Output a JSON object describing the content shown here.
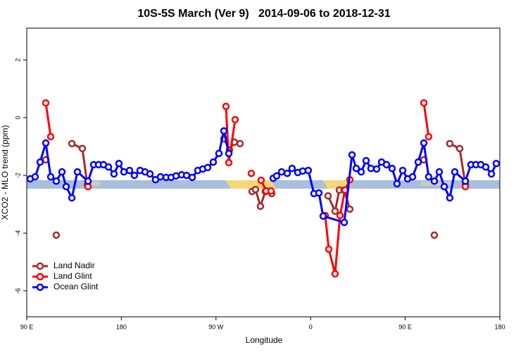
{
  "chart_data": {
    "type": "line",
    "title": "10S-5S March (Ver 9)   2014-09-06 to 2018-12-31",
    "x_label": "Longitude",
    "y_label": "XCO2 - MLO trend (ppm)",
    "xlim": [
      90,
      540
    ],
    "ylim": [
      -6.9,
      3.1
    ],
    "xticks": [
      {
        "value": 90,
        "label": "90 E"
      },
      180,
      {
        "value": 270,
        "label": "90 W"
      },
      {
        "value": 360,
        "label": "0"
      },
      {
        "value": 450,
        "label": "90 E"
      },
      {
        "value": 540,
        "label": "180"
      }
    ],
    "yticks": [
      -6,
      -4,
      -2,
      0,
      2
    ],
    "legend": "bottom-left",
    "series": [
      {
        "name": "Land Nadir",
        "color": "#a52a2a",
        "x": [
          108.1,
          null,
          118.1,
          null,
          132.9,
          142.9,
          147.6,
          null,
          277.5,
          282.8,
          287.5,
          292.9,
          null,
          304.3,
          307.6,
          312.3,
          316.9,
          323.0,
          null,
          376.6,
          383.3,
          387.3,
          392.0,
          397.3,
          null,
          467.7,
          null,
          477.7,
          null,
          492.4,
          501.8,
          507.2
        ],
        "values": [
          -1.46,
          null,
          -4.07,
          null,
          -0.9,
          -1.07,
          -2.32,
          null,
          -0.73,
          -1.12,
          -0.85,
          -0.9,
          null,
          -2.56,
          -2.49,
          -3.07,
          -2.56,
          -2.63,
          null,
          -2.71,
          -3.24,
          -2.51,
          -2.51,
          -3.17,
          null,
          -1.46,
          null,
          -4.07,
          null,
          -0.9,
          -1.07,
          -2.32
        ]
      },
      {
        "name": "Land Glint",
        "color": "#ff0000",
        "x": [
          108.1,
          112.8,
          null,
          148.3,
          null,
          279.5,
          282.2,
          288.2,
          null,
          303.6,
          null,
          312.9,
          317.7,
          322.4,
          null,
          373.9,
          377.3,
          383.3,
          388.0,
          392.7,
          397.3,
          null,
          467.7,
          472.3,
          null,
          507.2
        ],
        "values": [
          0.51,
          -0.66,
          null,
          -2.39,
          null,
          0.39,
          -1.56,
          -0.07,
          null,
          -1.93,
          null,
          -2.17,
          -2.54,
          -2.54,
          null,
          -3.39,
          -4.56,
          -5.41,
          -3.39,
          -2.51,
          -2.15,
          null,
          0.51,
          -0.66,
          null,
          -2.39
        ]
      },
      {
        "name": "Ocean Glint",
        "color": "#0000ff",
        "x": [
          93.3,
          98.0,
          102.7,
          108.1,
          112.8,
          118.1,
          123.5,
          127.5,
          132.9,
          138.2,
          148.3,
          153.6,
          158.3,
          163.0,
          167.7,
          173.0,
          177.7,
          182.4,
          187.8,
          192.4,
          197.8,
          202.5,
          207.2,
          212.5,
          217.2,
          222.6,
          227.3,
          232.0,
          237.3,
          242.0,
          247.4,
          252.7,
          257.4,
          262.1,
          267.4,
          272.8,
          277.5,
          282.2,
          null,
          324.4,
          327.7,
          332.4,
          337.8,
          342.4,
          347.8,
          352.5,
          357.8,
          363.2,
          367.9,
          371.9,
          392.0,
          399.4,
          403.4,
          408.1,
          412.8,
          417.4,
          422.8,
          427.5,
          432.2,
          437.5,
          442.2,
          447.6,
          452.3,
          457.0,
          462.3,
          467.7,
          472.3,
          477.7,
          482.4,
          487.1,
          492.4,
          497.1,
          507.2,
          512.5,
          517.2,
          521.9,
          526.6,
          532.0,
          536.6
        ],
        "values": [
          -2.12,
          -2.05,
          -1.54,
          -0.88,
          -2.05,
          -2.2,
          -1.88,
          -2.39,
          -2.78,
          -1.88,
          -2.2,
          -1.63,
          -1.63,
          -1.63,
          -1.71,
          -1.95,
          -1.59,
          -1.88,
          -1.83,
          -2.0,
          -1.83,
          -1.88,
          -1.95,
          -2.15,
          -2.05,
          -2.07,
          -2.07,
          -2.02,
          -1.98,
          -2.0,
          -2.07,
          -1.83,
          -1.78,
          -1.73,
          -1.54,
          -1.24,
          -0.46,
          -1.24,
          null,
          -2.1,
          -2.02,
          -1.88,
          -1.93,
          -1.76,
          -1.9,
          -1.85,
          -1.83,
          -2.63,
          -2.61,
          -3.41,
          -3.63,
          -1.29,
          -1.76,
          -1.88,
          -1.49,
          -1.76,
          -1.78,
          -1.54,
          -1.63,
          -1.76,
          -2.29,
          -1.83,
          -2.12,
          -2.05,
          -1.54,
          -0.88,
          -2.05,
          -2.2,
          -1.88,
          -2.39,
          -2.78,
          -1.88,
          -2.2,
          -1.63,
          -1.63,
          -1.63,
          -1.71,
          -1.95,
          -1.59
        ]
      }
    ]
  }
}
